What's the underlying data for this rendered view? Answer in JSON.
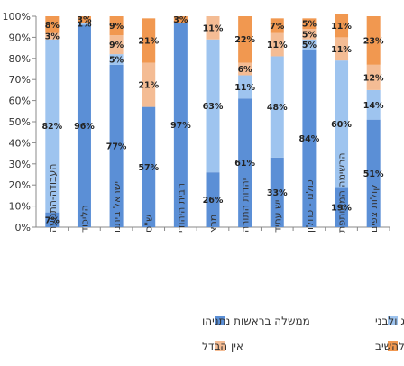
{
  "chart_data": {
    "type": "bar",
    "stacked": true,
    "categories": [
      "העבודה-התנועה",
      "הליכוד",
      "ישראל ביתנו",
      "ש\"ס",
      "הבית היהודי",
      "מרצ",
      "יהדות התורה",
      "יש עתיד",
      "כולנו - כחלון",
      "הרשימה המשותפת",
      "קולות צפים"
    ],
    "series": [
      {
        "name": "ממשלה בראשות נתניהו",
        "color": "#5b8fd6",
        "values": [
          7,
          96,
          77,
          57,
          97,
          26,
          61,
          33,
          84,
          19,
          51
        ]
      },
      {
        "name": "ממשלה בראשות הרצוג ולבני",
        "color": "#9ec4ef",
        "values": [
          82,
          1,
          5,
          0,
          0,
          63,
          11,
          48,
          5,
          60,
          14
        ]
      },
      {
        "name": "אין הבדל",
        "color": "#f4bc94",
        "values": [
          3,
          0,
          9,
          21,
          0,
          11,
          6,
          11,
          5,
          11,
          12
        ]
      },
      {
        "name": "לא יודע/ מסרב להשיב",
        "color": "#f19850",
        "values": [
          8,
          3,
          9,
          21,
          3,
          0,
          22,
          7,
          5,
          11,
          23
        ]
      }
    ],
    "data_labels": [
      [
        "7%",
        "96%",
        "77%",
        "57%",
        "97%",
        "26%",
        "61%",
        "33%",
        "84%",
        "19%",
        "51%"
      ],
      [
        "82%",
        "1%",
        "5%",
        "",
        "",
        "63%",
        "11%",
        "48%",
        "5%",
        "60%",
        "14%"
      ],
      [
        "3%",
        "",
        "9%",
        "21%",
        "",
        "11%",
        "6%",
        "11%",
        "5%",
        "11%",
        "12%"
      ],
      [
        "8%",
        "3%",
        "9%",
        "21%",
        "3%",
        "",
        "22%",
        "7%",
        "5%",
        "11%",
        "23%"
      ]
    ],
    "ylim": [
      0,
      100
    ],
    "yticks": [
      "0%",
      "10%",
      "20%",
      "30%",
      "40%",
      "50%",
      "60%",
      "70%",
      "80%",
      "90%",
      "100%"
    ],
    "legend_position": "bottom",
    "grid": false
  }
}
